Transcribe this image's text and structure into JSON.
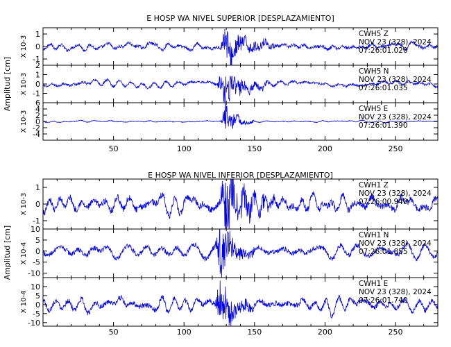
{
  "chart_data": [
    {
      "type": "line",
      "title": "E HOSP WA NIVEL SUPERIOR [DESPLAZAMIENTO]",
      "ylabel": "Amplitud [cm]",
      "xlim": [
        0,
        280
      ],
      "x_ticks": [
        50,
        100,
        150,
        200,
        250
      ],
      "traces": [
        {
          "station": "CWH5",
          "component": "Z",
          "date": "NOV 23 (328), 2024",
          "time": "07:26:01.020",
          "exponent_label": "X 10-3",
          "ylim": [
            -1.5,
            1.5
          ],
          "y_ticks": [
            -1,
            0,
            1
          ],
          "noise_level": 0.35,
          "burst_level": 0.8,
          "burst_start": 125,
          "burst_end": 165
        },
        {
          "station": "CWH5",
          "component": "N",
          "date": "NOV 23 (328), 2024",
          "time": "07:26:01.035",
          "exponent_label": "X 10-3",
          "ylim": [
            -2,
            2
          ],
          "y_ticks": [
            -1,
            0,
            1,
            2
          ],
          "noise_level": 0.35,
          "burst_level": 1.6,
          "burst_start": 123,
          "burst_end": 160
        },
        {
          "station": "CWH5",
          "component": "E",
          "date": "NOV 23 (328), 2024",
          "time": "07:26:01.390",
          "exponent_label": "X 10-3",
          "ylim": [
            -6,
            6
          ],
          "y_ticks": [
            -4,
            -2,
            0,
            2,
            4,
            6
          ],
          "noise_level": 0.3,
          "burst_level": 4.5,
          "burst_start": 126,
          "burst_end": 150
        }
      ]
    },
    {
      "type": "line",
      "title": "E HOSP WA NIVEL INFERIOR [DESPLAZAMIENTO]",
      "ylabel": "Amplitud [cm]",
      "xlim": [
        0,
        280
      ],
      "x_ticks": [
        50,
        100,
        150,
        200,
        250
      ],
      "traces": [
        {
          "station": "CWH1",
          "component": "Z",
          "date": "NOV 23 (328), 2024",
          "time": "07:26:00.940",
          "exponent_label": "X 10-3",
          "ylim": [
            -1.5,
            1.5
          ],
          "y_ticks": [
            -1,
            0,
            1
          ],
          "noise_level": 0.55,
          "burst_level": 1.0,
          "burst_start": 125,
          "burst_end": 165
        },
        {
          "station": "CWH1",
          "component": "N",
          "date": "NOV 23 (328), 2024",
          "time": "07:26:01.855",
          "exponent_label": "X 10-4",
          "ylim": [
            -12,
            10
          ],
          "y_ticks": [
            -10,
            -5,
            0,
            5,
            10
          ],
          "noise_level": 3.0,
          "burst_level": 8.0,
          "burst_start": 122,
          "burst_end": 150
        },
        {
          "station": "CWH1",
          "component": "E",
          "date": "NOV 23 (328), 2024",
          "time": "07:26:01.740",
          "exponent_label": "X 10-4",
          "ylim": [
            -12,
            15
          ],
          "y_ticks": [
            -10,
            -5,
            0,
            5,
            10
          ],
          "noise_level": 4.0,
          "burst_level": 9.0,
          "burst_start": 122,
          "burst_end": 150
        }
      ]
    }
  ],
  "colors": {
    "trace": "#0000ee",
    "frame": "#000000",
    "background": "#ffffff"
  }
}
